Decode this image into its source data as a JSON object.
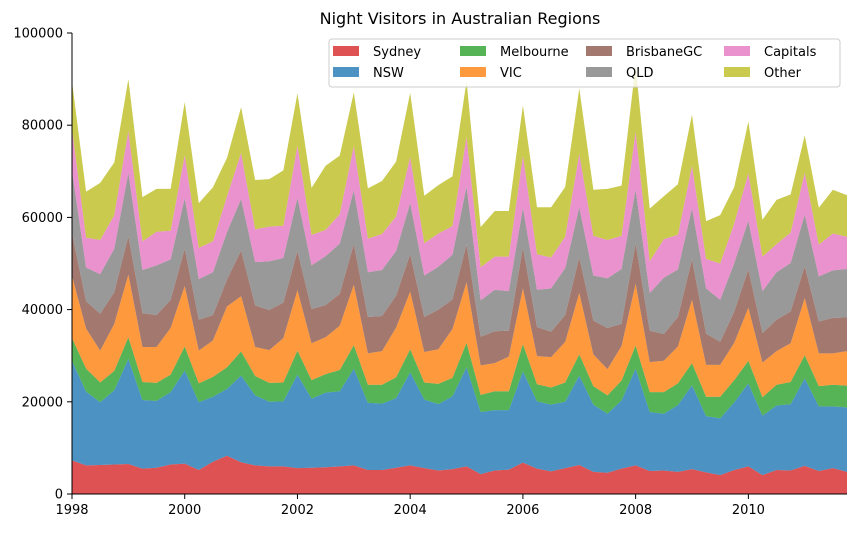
{
  "chart_data": {
    "type": "area",
    "stacked": true,
    "title": "Night Visitors in Australian Regions",
    "xlabel": "",
    "ylabel": "",
    "frequency": "quarterly",
    "x_start": 1998.0,
    "x_step": 0.25,
    "xlim": [
      1998.0,
      2011.75
    ],
    "ylim": [
      0,
      100000
    ],
    "x_ticks": [
      1998,
      2000,
      2002,
      2004,
      2006,
      2008,
      2010
    ],
    "y_ticks": [
      0,
      20000,
      40000,
      60000,
      80000,
      100000
    ],
    "grid": false,
    "legend_position": "top-right",
    "legend_columns": 4,
    "legend_order": [
      "Sydney",
      "NSW",
      "Melbourne",
      "VIC",
      "BrisbaneGC",
      "QLD",
      "Capitals",
      "Other"
    ],
    "alpha": 0.8,
    "series": [
      {
        "name": "Sydney",
        "color": "#d62728",
        "values": [
          7300,
          6200,
          6300,
          6400,
          6500,
          5500,
          5700,
          6400,
          6600,
          5200,
          7000,
          8300,
          6900,
          6200,
          6000,
          6000,
          5600,
          5700,
          5800,
          6000,
          6200,
          5200,
          5200,
          5700,
          6200,
          5600,
          5100,
          5400,
          6000,
          4300,
          5100,
          5300,
          6800,
          5500,
          4900,
          5600,
          6300,
          4800,
          4600,
          5500,
          6200,
          5000,
          5100,
          4800,
          5400,
          4700,
          4100,
          5200,
          6000,
          4100,
          5200,
          5100,
          6100,
          5000,
          5600,
          4800
        ]
      },
      {
        "name": "NSW",
        "color": "#1f77b4",
        "values": [
          21600,
          16000,
          13600,
          16100,
          22800,
          14900,
          14500,
          15700,
          20200,
          14700,
          14100,
          14500,
          18800,
          15200,
          14000,
          14100,
          20300,
          15000,
          16200,
          16300,
          21000,
          14600,
          14400,
          15100,
          20200,
          14900,
          14400,
          15800,
          21500,
          13500,
          13100,
          12900,
          19800,
          14600,
          14500,
          14400,
          19400,
          14600,
          12800,
          14800,
          21000,
          12800,
          12300,
          14500,
          18200,
          12200,
          12300,
          14700,
          18000,
          12900,
          14000,
          14400,
          19000,
          14000,
          13400,
          14000
        ]
      },
      {
        "name": "Melbourne",
        "color": "#2ca02c",
        "values": [
          4900,
          5000,
          4300,
          4200,
          4700,
          3900,
          3900,
          3800,
          5200,
          4100,
          4300,
          4700,
          5200,
          4200,
          4100,
          4100,
          5200,
          4000,
          4000,
          4600,
          5100,
          3900,
          4100,
          4500,
          5000,
          3700,
          4400,
          4000,
          5300,
          3700,
          4100,
          4100,
          5900,
          3700,
          3700,
          4200,
          4600,
          4000,
          4000,
          4300,
          5000,
          4300,
          4700,
          4700,
          4800,
          4200,
          4700,
          4800,
          4900,
          4000,
          4500,
          4800,
          5000,
          4400,
          4700,
          4700
        ]
      },
      {
        "name": "VIC",
        "color": "#ff7f0e",
        "values": [
          13500,
          8700,
          6900,
          10200,
          13600,
          7600,
          7800,
          10100,
          13100,
          7100,
          7900,
          13200,
          12000,
          6300,
          7100,
          9600,
          13100,
          8000,
          8000,
          9600,
          13100,
          6800,
          7300,
          10800,
          12500,
          6600,
          7500,
          10600,
          13100,
          6400,
          6100,
          7500,
          12100,
          6100,
          6600,
          8800,
          13300,
          6900,
          5700,
          7500,
          13400,
          6500,
          6800,
          8000,
          13700,
          6900,
          6900,
          8100,
          11500,
          7500,
          7300,
          8400,
          12400,
          7100,
          6800,
          7500
        ]
      },
      {
        "name": "BrisbaneGC",
        "color": "#8c564b",
        "values": [
          9200,
          5900,
          8000,
          6900,
          8300,
          7300,
          6900,
          6100,
          8100,
          6700,
          5500,
          5800,
          9900,
          9000,
          8700,
          7700,
          8500,
          7400,
          7000,
          6900,
          8800,
          7900,
          7600,
          6900,
          8100,
          7600,
          8600,
          6400,
          8200,
          6200,
          6900,
          5600,
          8900,
          6300,
          5500,
          5800,
          7700,
          7300,
          8900,
          4800,
          8800,
          6800,
          5800,
          6400,
          8800,
          6800,
          5000,
          6800,
          8300,
          6400,
          6800,
          6900,
          6900,
          6900,
          7700,
          7300
        ]
      },
      {
        "name": "QLD",
        "color": "#7f7f7f",
        "values": [
          13600,
          7300,
          8600,
          9400,
          13800,
          9400,
          10800,
          8800,
          11000,
          8800,
          9300,
          10300,
          11200,
          9400,
          10600,
          9700,
          11600,
          9500,
          10600,
          10900,
          11700,
          9700,
          10000,
          9700,
          11100,
          9000,
          9300,
          9700,
          12600,
          7900,
          9000,
          8600,
          8600,
          8100,
          9400,
          10200,
          10900,
          9800,
          10800,
          11900,
          11700,
          8200,
          12200,
          10300,
          11100,
          9800,
          9100,
          10500,
          10600,
          9100,
          10300,
          10500,
          11200,
          9800,
          10300,
          10500
        ]
      },
      {
        "name": "Capitals",
        "color": "#e377c2",
        "values": [
          9100,
          6500,
          7400,
          7300,
          9100,
          6200,
          7300,
          6200,
          9300,
          6800,
          6700,
          7800,
          10000,
          7100,
          7500,
          7000,
          11300,
          6600,
          5700,
          6400,
          9600,
          7300,
          7800,
          7500,
          10000,
          7000,
          7200,
          6200,
          10800,
          7200,
          7200,
          7500,
          11300,
          7700,
          6700,
          6800,
          11600,
          8600,
          8300,
          7200,
          12500,
          6900,
          8400,
          7500,
          9200,
          6400,
          7900,
          8600,
          10300,
          7500,
          6100,
          6600,
          9100,
          6900,
          8000,
          7000
        ]
      },
      {
        "name": "Other",
        "color": "#bcbd22",
        "values": [
          10200,
          10000,
          12400,
          11400,
          11200,
          9600,
          9300,
          9100,
          11500,
          9700,
          11700,
          8300,
          9900,
          10700,
          10300,
          12000,
          11300,
          10200,
          13900,
          12700,
          11600,
          10900,
          11500,
          11900,
          13900,
          10300,
          10500,
          10800,
          12100,
          8700,
          9900,
          9900,
          10900,
          10200,
          10900,
          10800,
          14200,
          10000,
          11100,
          10900,
          14400,
          11400,
          9300,
          11000,
          11100,
          8200,
          10500,
          7900,
          11200,
          8000,
          9600,
          8300,
          8100,
          8000,
          9500,
          9000
        ]
      }
    ]
  }
}
